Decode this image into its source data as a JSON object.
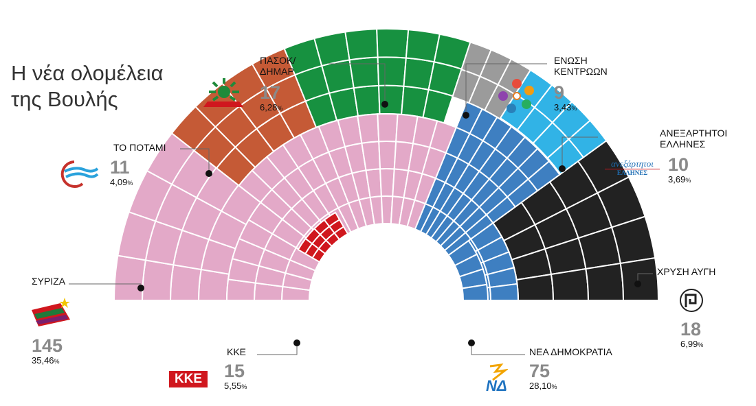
{
  "title": {
    "line1": "Η νέα ολομέλεια",
    "line2": "της Βουλής"
  },
  "colors": {
    "syriza": "#e3a9c8",
    "kke": "#d0171e",
    "potami": "#c55a36",
    "pasok": "#179140",
    "enosi": "#9b9b9b",
    "anel": "#31b3e6",
    "xa": "#222222",
    "nd": "#3e7fc1"
  },
  "chart_data": {
    "type": "parliament",
    "total_seats": 300,
    "parties": [
      {
        "key": "syriza",
        "name": "ΣΥΡΙΖΑ",
        "seats": 145,
        "seats_label": "145",
        "vote_share": "35,46",
        "pct_sign": "%"
      },
      {
        "key": "kke",
        "name": "ΚΚΕ",
        "seats": 15,
        "seats_label": "15",
        "vote_share": "5,55",
        "pct_sign": "%"
      },
      {
        "key": "potami",
        "name": "ΤΟ ΠΟΤΑΜΙ",
        "seats": 11,
        "seats_label": "11",
        "vote_share": "4,09",
        "pct_sign": "%"
      },
      {
        "key": "pasok",
        "name": "ΠΑΣΟΚ/",
        "name2": "ΔΗΜΑΡ",
        "seats": 17,
        "seats_label": "17",
        "vote_share": "6,28",
        "pct_sign": "%"
      },
      {
        "key": "enosi",
        "name": "ΕΝΩΣΗ",
        "name2": "ΚΕΝΤΡΩΩΝ",
        "seats": 9,
        "seats_label": "9",
        "vote_share": "3,43",
        "pct_sign": "%"
      },
      {
        "key": "anel",
        "name": "ΑΝΕΞΑΡΤΗΤΟΙ",
        "name2": "ΕΛΛΗΝΕΣ",
        "seats": 10,
        "seats_label": "10",
        "vote_share": "3,69",
        "pct_sign": "%"
      },
      {
        "key": "xa",
        "name": "ΧΡΥΣΗ ΑΥΓΗ",
        "seats": 18,
        "seats_label": "18",
        "vote_share": "6,99",
        "pct_sign": "%"
      },
      {
        "key": "nd",
        "name": "ΝΕΑ ΔΗΜΟΚΡΑΤΙΑ",
        "seats": 75,
        "seats_label": "75",
        "vote_share": "28,10",
        "pct_sign": "%"
      }
    ]
  },
  "logos": {
    "kke_text": "ΚΚΕ",
    "nd_text": "ΝΔ",
    "anel_top": "ανεξάρτητοι",
    "anel_bottom": "ΕΛΛΗΝΕΣ"
  }
}
